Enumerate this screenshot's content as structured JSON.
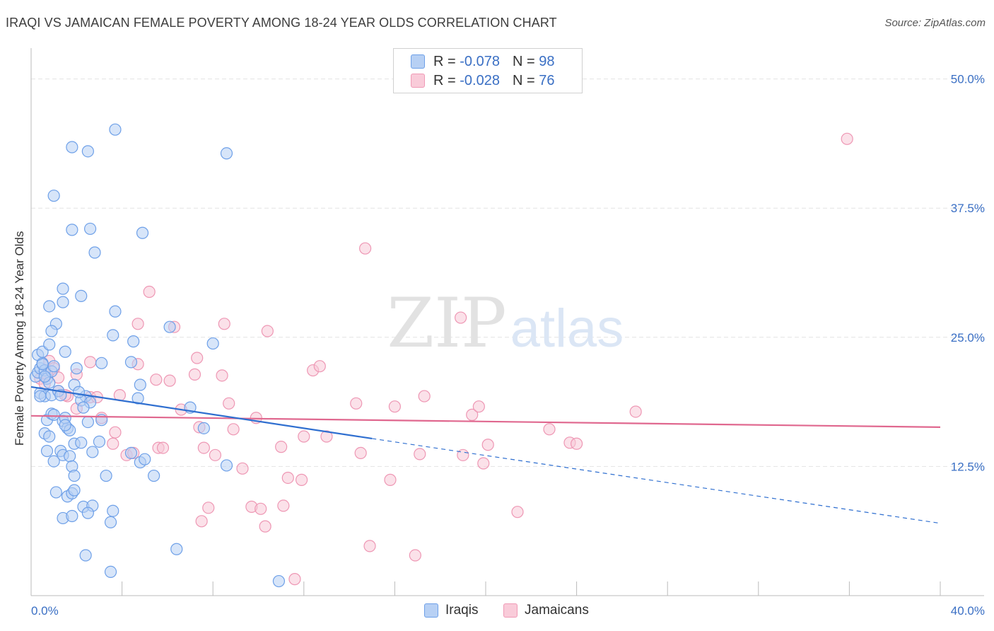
{
  "title": "IRAQI VS JAMAICAN FEMALE POVERTY AMONG 18-24 YEAR OLDS CORRELATION CHART",
  "source": "Source: ZipAtlas.com",
  "watermark": {
    "zip": "ZIP",
    "atlas": "atlas"
  },
  "legend_top": {
    "r_label": "R =",
    "n_label": "N =",
    "rows": [
      {
        "r": "-0.078",
        "n": "98",
        "color": "#6ea0e8",
        "fill": "#b7d0f4"
      },
      {
        "r": "-0.028",
        "n": "76",
        "color": "#f09ab6",
        "fill": "#f9cbd9"
      }
    ]
  },
  "bottom_legend": {
    "items": [
      "Iraqis",
      "Jamaicans"
    ]
  },
  "colors": {
    "iraqi_stroke": "#6ea0e8",
    "iraqi_fill": "#b7d0f4",
    "jamaican_stroke": "#ee97b4",
    "jamaican_fill": "#f8c8d7",
    "iraqi_line": "#2f6fd0",
    "jamaican_line": "#e0688f",
    "axis_text": "#3a6fc4"
  },
  "chart_data": {
    "type": "scatter",
    "title": "IRAQI VS JAMAICAN FEMALE POVERTY AMONG 18-24 YEAR OLDS CORRELATION CHART",
    "xlabel": "",
    "ylabel": "Female Poverty Among 18-24 Year Olds",
    "xlim": [
      0,
      40
    ],
    "ylim": [
      0,
      50
    ],
    "x_tick_labels": [
      "0.0%",
      "40.0%"
    ],
    "y_ticks": [
      12.5,
      25.0,
      37.5,
      50.0
    ],
    "y_tick_labels": [
      "12.5%",
      "25.0%",
      "37.5%",
      "50.0%"
    ],
    "grid": true,
    "legend_position": "top-center",
    "series": [
      {
        "name": "Iraqis",
        "r": -0.078,
        "n": 98,
        "trend": {
          "x": [
            0,
            15
          ],
          "y": [
            20.2,
            15.2
          ],
          "extended_to": [
            40,
            7.0
          ]
        },
        "points": [
          [
            0.2,
            21.2
          ],
          [
            0.3,
            21.6
          ],
          [
            0.4,
            22.0
          ],
          [
            0.5,
            22.5
          ],
          [
            0.6,
            21.8
          ],
          [
            0.7,
            21.0
          ],
          [
            0.8,
            20.6
          ],
          [
            0.9,
            21.7
          ],
          [
            1.0,
            22.2
          ],
          [
            0.3,
            23.3
          ],
          [
            0.5,
            23.6
          ],
          [
            0.4,
            19.6
          ],
          [
            0.6,
            19.3
          ],
          [
            0.9,
            19.4
          ],
          [
            1.2,
            19.8
          ],
          [
            0.7,
            17.0
          ],
          [
            0.9,
            17.6
          ],
          [
            1.0,
            17.5
          ],
          [
            1.4,
            16.9
          ],
          [
            1.6,
            16.2
          ],
          [
            1.5,
            17.2
          ],
          [
            1.7,
            16.0
          ],
          [
            1.5,
            16.5
          ],
          [
            0.6,
            15.7
          ],
          [
            0.8,
            15.4
          ],
          [
            1.3,
            14.0
          ],
          [
            1.4,
            13.6
          ],
          [
            0.7,
            14.0
          ],
          [
            1.9,
            14.7
          ],
          [
            2.2,
            14.8
          ],
          [
            1.0,
            13.0
          ],
          [
            1.7,
            13.5
          ],
          [
            1.8,
            12.5
          ],
          [
            1.9,
            11.6
          ],
          [
            1.1,
            10.0
          ],
          [
            1.6,
            9.6
          ],
          [
            1.8,
            9.9
          ],
          [
            1.9,
            10.2
          ],
          [
            2.3,
            8.6
          ],
          [
            2.7,
            8.7
          ],
          [
            2.5,
            8.0
          ],
          [
            1.4,
            7.5
          ],
          [
            1.8,
            7.7
          ],
          [
            3.5,
            7.1
          ],
          [
            3.6,
            8.2
          ],
          [
            3.3,
            11.6
          ],
          [
            4.4,
            13.8
          ],
          [
            4.8,
            12.9
          ],
          [
            5.0,
            13.2
          ],
          [
            5.4,
            11.6
          ],
          [
            2.4,
            3.9
          ],
          [
            3.5,
            2.3
          ],
          [
            6.4,
            4.5
          ],
          [
            10.9,
            1.4
          ],
          [
            0.8,
            28.0
          ],
          [
            1.1,
            26.3
          ],
          [
            0.9,
            25.6
          ],
          [
            0.8,
            24.3
          ],
          [
            1.5,
            23.6
          ],
          [
            1.4,
            28.4
          ],
          [
            1.4,
            29.7
          ],
          [
            2.2,
            29.0
          ],
          [
            1.0,
            38.7
          ],
          [
            1.8,
            35.4
          ],
          [
            2.6,
            35.5
          ],
          [
            2.8,
            33.2
          ],
          [
            4.9,
            35.1
          ],
          [
            1.8,
            43.4
          ],
          [
            2.5,
            43.0
          ],
          [
            3.7,
            45.1
          ],
          [
            8.6,
            42.8
          ],
          [
            3.7,
            27.5
          ],
          [
            3.6,
            25.2
          ],
          [
            4.5,
            24.6
          ],
          [
            4.4,
            22.6
          ],
          [
            3.1,
            22.5
          ],
          [
            2.0,
            22.0
          ],
          [
            1.9,
            20.4
          ],
          [
            2.4,
            19.3
          ],
          [
            2.2,
            18.9
          ],
          [
            2.6,
            18.7
          ],
          [
            2.3,
            18.2
          ],
          [
            3.1,
            17.0
          ],
          [
            4.8,
            20.4
          ],
          [
            4.7,
            19.1
          ],
          [
            6.1,
            26.0
          ],
          [
            8.0,
            24.4
          ],
          [
            7.0,
            18.2
          ],
          [
            7.6,
            16.2
          ],
          [
            8.6,
            12.6
          ],
          [
            2.1,
            19.7
          ],
          [
            1.3,
            19.4
          ],
          [
            2.5,
            16.8
          ],
          [
            3.0,
            14.9
          ],
          [
            0.4,
            19.3
          ],
          [
            0.6,
            21.2
          ],
          [
            0.5,
            22.4
          ],
          [
            2.7,
            13.9
          ]
        ]
      },
      {
        "name": "Jamaicans",
        "r": -0.028,
        "n": 76,
        "trend": {
          "x": [
            0,
            40
          ],
          "y": [
            17.4,
            16.3
          ]
        },
        "points": [
          [
            0.4,
            21.0
          ],
          [
            0.6,
            20.5
          ],
          [
            0.8,
            22.7
          ],
          [
            1.0,
            22.0
          ],
          [
            1.2,
            19.8
          ],
          [
            1.6,
            19.3
          ],
          [
            2.0,
            21.4
          ],
          [
            2.6,
            22.6
          ],
          [
            2.6,
            19.2
          ],
          [
            2.9,
            19.2
          ],
          [
            2.0,
            18.1
          ],
          [
            3.1,
            17.2
          ],
          [
            3.7,
            15.8
          ],
          [
            3.6,
            14.7
          ],
          [
            3.9,
            19.4
          ],
          [
            4.2,
            13.6
          ],
          [
            4.5,
            13.8
          ],
          [
            4.7,
            22.4
          ],
          [
            4.7,
            26.3
          ],
          [
            5.2,
            29.4
          ],
          [
            5.5,
            20.9
          ],
          [
            5.6,
            14.3
          ],
          [
            5.8,
            14.3
          ],
          [
            6.1,
            20.8
          ],
          [
            6.3,
            26.0
          ],
          [
            6.6,
            18.0
          ],
          [
            7.2,
            21.4
          ],
          [
            7.3,
            23.0
          ],
          [
            7.4,
            16.3
          ],
          [
            7.6,
            14.3
          ],
          [
            7.5,
            7.2
          ],
          [
            7.8,
            8.5
          ],
          [
            8.1,
            13.6
          ],
          [
            8.4,
            21.3
          ],
          [
            8.5,
            26.3
          ],
          [
            8.7,
            18.6
          ],
          [
            8.9,
            16.1
          ],
          [
            9.3,
            12.3
          ],
          [
            9.7,
            8.6
          ],
          [
            9.9,
            17.2
          ],
          [
            10.1,
            8.4
          ],
          [
            10.3,
            6.7
          ],
          [
            10.4,
            25.6
          ],
          [
            11.0,
            14.4
          ],
          [
            11.1,
            8.7
          ],
          [
            11.3,
            11.4
          ],
          [
            11.6,
            1.6
          ],
          [
            11.9,
            11.2
          ],
          [
            12.0,
            15.4
          ],
          [
            12.4,
            21.8
          ],
          [
            12.7,
            22.2
          ],
          [
            13.0,
            15.4
          ],
          [
            14.3,
            18.6
          ],
          [
            14.5,
            13.8
          ],
          [
            14.9,
            4.8
          ],
          [
            14.7,
            33.6
          ],
          [
            15.8,
            11.2
          ],
          [
            16.0,
            18.3
          ],
          [
            16.9,
            3.9
          ],
          [
            17.1,
            13.7
          ],
          [
            17.3,
            19.3
          ],
          [
            18.9,
            26.9
          ],
          [
            19.0,
            13.6
          ],
          [
            19.4,
            17.5
          ],
          [
            19.7,
            18.3
          ],
          [
            19.9,
            12.8
          ],
          [
            20.1,
            14.6
          ],
          [
            21.4,
            8.1
          ],
          [
            22.8,
            16.1
          ],
          [
            23.7,
            14.8
          ],
          [
            24.0,
            14.7
          ],
          [
            26.6,
            17.8
          ],
          [
            35.9,
            44.2
          ],
          [
            1.5,
            19.4
          ],
          [
            1.2,
            21.1
          ],
          [
            0.7,
            21.4
          ]
        ]
      }
    ]
  }
}
